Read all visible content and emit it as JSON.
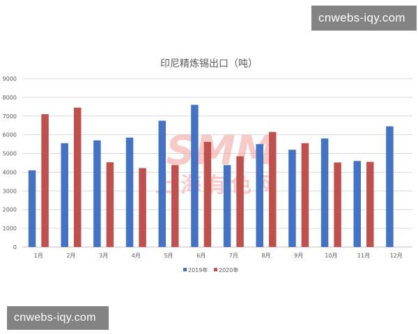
{
  "watermarks": {
    "top": "cnwebs-iqy.com",
    "bottom": "cnwebs-iqy.com",
    "logo_letters": "SMM",
    "logo_text": "上海有色网"
  },
  "colors": {
    "series_2019": "#4472C4",
    "series_2020": "#C0504D",
    "grid": "#d9d9d9",
    "text": "#595959",
    "logo": "#f4a09a"
  },
  "chart_data": {
    "type": "bar",
    "title": "印尼精炼锡出口（吨）",
    "xlabel": "",
    "ylabel": "",
    "ylim": [
      0,
      9000
    ],
    "yticks": [
      0,
      1000,
      2000,
      3000,
      4000,
      5000,
      6000,
      7000,
      8000,
      9000
    ],
    "grid": true,
    "legend_position": "bottom",
    "categories": [
      "1月",
      "2月",
      "3月",
      "4月",
      "5月",
      "6月",
      "7月",
      "8月",
      "9月",
      "10月",
      "11月",
      "12月"
    ],
    "series": [
      {
        "name": "2019年",
        "color": "#4472C4",
        "values": [
          4100,
          5550,
          5700,
          5850,
          6750,
          7600,
          4380,
          5500,
          5200,
          5800,
          4600,
          6450
        ]
      },
      {
        "name": "2020年",
        "color": "#C0504D",
        "values": [
          7100,
          7450,
          4530,
          4220,
          4380,
          5620,
          4850,
          6150,
          5550,
          4520,
          4550,
          null
        ]
      }
    ]
  }
}
